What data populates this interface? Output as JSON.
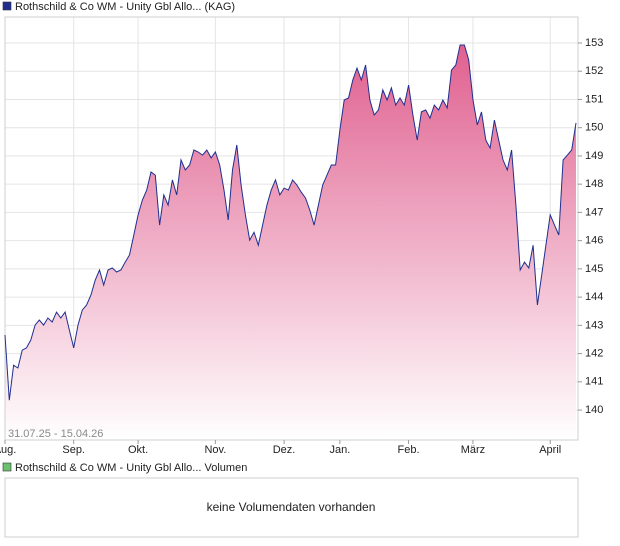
{
  "chart_data": {
    "type": "area",
    "title": "Rothschild & Co WM - Unity Gbl Allo... (KAG)",
    "annotation": "31.07.25 - 15.04.26",
    "color": "#1f2f8f",
    "fill_color": "#e0608f",
    "grid": true,
    "ylim": [
      138.94,
      153.92
    ],
    "yticks": [
      140,
      141,
      142,
      143,
      144,
      145,
      146,
      147,
      148,
      149,
      150,
      151,
      152,
      153
    ],
    "categories": [
      "Aug.",
      null,
      null,
      null,
      null,
      null,
      null,
      null,
      null,
      null,
      null,
      null,
      null,
      null,
      null,
      null,
      "Sep.",
      null,
      null,
      null,
      null,
      null,
      null,
      null,
      null,
      null,
      null,
      null,
      null,
      null,
      null,
      "Okt.",
      null,
      null,
      null,
      null,
      null,
      null,
      null,
      null,
      null,
      null,
      null,
      null,
      null,
      null,
      null,
      null,
      null,
      "Nov.",
      null,
      null,
      null,
      null,
      null,
      null,
      null,
      null,
      null,
      null,
      null,
      null,
      null,
      null,
      null,
      "Dez.",
      null,
      null,
      null,
      null,
      null,
      null,
      null,
      null,
      null,
      null,
      null,
      null,
      "Jan.",
      null,
      null,
      null,
      null,
      null,
      null,
      null,
      null,
      null,
      null,
      null,
      null,
      null,
      null,
      null,
      "Feb.",
      null,
      null,
      null,
      null,
      null,
      null,
      null,
      null,
      null,
      null,
      null,
      null,
      null,
      null,
      "März",
      null,
      null,
      null,
      null,
      null,
      null,
      null,
      null,
      null,
      null,
      null,
      null,
      null,
      null,
      null,
      null,
      null,
      "April",
      null,
      null,
      null,
      null,
      null,
      null
    ],
    "values": [
      142.66,
      140.35,
      141.59,
      141.49,
      142.12,
      142.2,
      142.48,
      143.01,
      143.19,
      143.01,
      143.26,
      143.12,
      143.47,
      143.26,
      143.47,
      142.83,
      142.2,
      143.01,
      143.54,
      143.72,
      144.07,
      144.6,
      144.96,
      144.43,
      144.96,
      145.03,
      144.89,
      144.96,
      145.24,
      145.49,
      146.2,
      146.91,
      147.44,
      147.79,
      148.43,
      148.32,
      146.55,
      147.62,
      147.26,
      148.15,
      147.62,
      148.86,
      148.5,
      148.68,
      149.21,
      149.14,
      149.03,
      149.21,
      148.93,
      149.14,
      148.68,
      147.79,
      146.73,
      148.5,
      149.39,
      147.97,
      146.91,
      146.02,
      146.3,
      145.84,
      146.55,
      147.26,
      147.79,
      148.15,
      147.62,
      147.86,
      147.79,
      148.15,
      147.97,
      147.72,
      147.51,
      147.08,
      146.55,
      147.26,
      147.97,
      148.32,
      148.68,
      148.68,
      149.92,
      150.98,
      151.05,
      151.69,
      152.11,
      151.69,
      152.22,
      150.98,
      150.45,
      150.63,
      151.34,
      150.98,
      151.41,
      150.8,
      151.05,
      150.8,
      151.51,
      150.45,
      149.56,
      150.56,
      150.63,
      150.34,
      150.8,
      150.63,
      150.98,
      150.7,
      152.04,
      152.22,
      152.93,
      152.93,
      152.4,
      150.98,
      150.1,
      150.56,
      149.56,
      149.28,
      150.27,
      149.56,
      148.86,
      148.5,
      149.21,
      147.26,
      144.96,
      145.24,
      145.03,
      145.84,
      143.72,
      144.78,
      145.84,
      146.91,
      146.55,
      146.2,
      148.86,
      149.03,
      149.21,
      150.17
    ]
  },
  "volume_panel": {
    "title": "Rothschild & Co WM - Unity Gbl Allo... Volumen",
    "message": "keine Volumendaten vorhanden",
    "color": "#6cc070"
  }
}
